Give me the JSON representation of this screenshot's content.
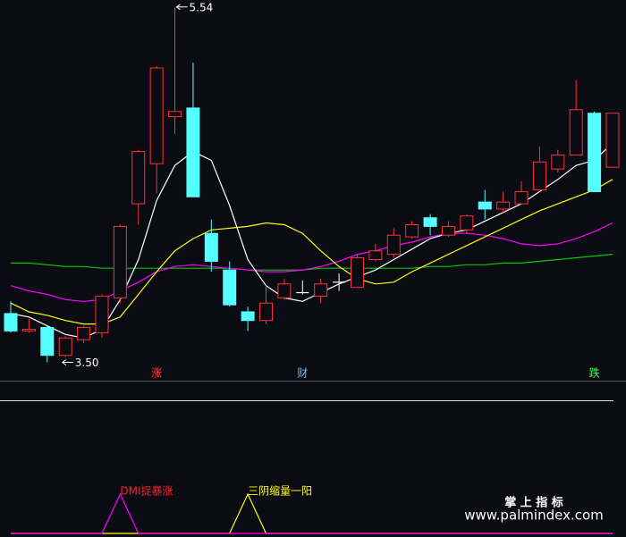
{
  "chart_data": {
    "type": "candlestick",
    "ylim": [
      3.4,
      5.58
    ],
    "up_color": "#ff3232",
    "down_color": "#54ffff",
    "doji_color": "#ffffff",
    "candles": {
      "open": [
        3.78,
        3.68,
        3.7,
        3.54,
        3.63,
        3.67,
        3.87,
        4.41,
        4.64,
        4.91,
        4.96,
        4.24,
        4.03,
        3.79,
        3.74,
        3.87,
        3.9,
        3.88,
        3.96,
        3.93,
        4.09,
        4.12,
        4.22,
        4.33,
        4.23,
        4.26,
        4.42,
        4.38,
        4.41,
        4.49,
        4.61,
        4.69,
        4.93,
        4.62
      ],
      "high": [
        3.85,
        3.75,
        3.71,
        3.65,
        3.71,
        3.89,
        4.29,
        4.72,
        5.2,
        5.54,
        5.22,
        4.32,
        4.08,
        3.82,
        3.94,
        3.98,
        3.97,
        3.98,
        4.01,
        4.12,
        4.18,
        4.27,
        4.31,
        4.35,
        4.31,
        4.35,
        4.49,
        4.48,
        4.54,
        4.74,
        4.72,
        5.12,
        4.94,
        4.93
      ],
      "low": [
        3.67,
        3.67,
        3.5,
        3.53,
        3.61,
        3.64,
        3.84,
        4.29,
        4.47,
        4.81,
        4.45,
        4.02,
        3.82,
        3.68,
        3.72,
        3.86,
        3.89,
        3.84,
        3.91,
        3.93,
        4.08,
        4.1,
        4.21,
        4.23,
        4.22,
        4.24,
        4.32,
        4.36,
        4.41,
        4.48,
        4.59,
        4.69,
        4.48,
        4.62
      ],
      "close": [
        3.68,
        3.69,
        3.54,
        3.64,
        3.7,
        3.88,
        4.28,
        4.71,
        5.19,
        4.94,
        4.45,
        4.08,
        3.83,
        3.74,
        3.84,
        3.95,
        3.9,
        3.95,
        3.96,
        4.1,
        4.14,
        4.23,
        4.29,
        4.28,
        4.28,
        4.34,
        4.38,
        4.42,
        4.48,
        4.65,
        4.69,
        4.95,
        4.48,
        4.93
      ]
    },
    "moving_averages": [
      {
        "color": "#00c800",
        "values": [
          4.07,
          4.07,
          4.06,
          4.05,
          4.05,
          4.04,
          4.04,
          4.04,
          4.04,
          4.04,
          4.04,
          4.04,
          4.04,
          4.03,
          4.03,
          4.03,
          4.03,
          4.04,
          4.04,
          4.04,
          4.04,
          4.04,
          4.04,
          4.05,
          4.05,
          4.06,
          4.06,
          4.07,
          4.07,
          4.08,
          4.09,
          4.1,
          4.11,
          4.12
        ]
      },
      {
        "color": "#ff00ff",
        "values": [
          3.94,
          3.91,
          3.89,
          3.86,
          3.85,
          3.86,
          3.91,
          3.96,
          4.02,
          4.05,
          4.06,
          4.05,
          4.04,
          4.03,
          4.02,
          4.02,
          4.03,
          4.05,
          4.08,
          4.12,
          4.14,
          4.17,
          4.19,
          4.22,
          4.24,
          4.24,
          4.23,
          4.21,
          4.18,
          4.17,
          4.18,
          4.21,
          4.25,
          4.3
        ]
      },
      {
        "color": "#ffff00",
        "values": [
          3.84,
          3.79,
          3.77,
          3.74,
          3.72,
          3.72,
          3.76,
          3.89,
          4.02,
          4.14,
          4.21,
          4.26,
          4.27,
          4.28,
          4.3,
          4.29,
          4.24,
          4.14,
          4.05,
          3.98,
          3.95,
          3.96,
          4.02,
          4.07,
          4.12,
          4.17,
          4.22,
          4.27,
          4.32,
          4.37,
          4.41,
          4.45,
          4.49,
          4.55
        ]
      },
      {
        "color": "#ffffff",
        "values": [
          3.78,
          3.76,
          3.71,
          3.66,
          3.64,
          3.69,
          3.86,
          4.09,
          4.43,
          4.63,
          4.71,
          4.66,
          4.4,
          4.09,
          3.94,
          3.87,
          3.85,
          3.9,
          3.95,
          3.99,
          4.03,
          4.09,
          4.15,
          4.21,
          4.24,
          4.26,
          4.31,
          4.36,
          4.41,
          4.48,
          4.55,
          4.63,
          4.66,
          4.76
        ]
      }
    ],
    "annotations": [
      {
        "text": "5.54",
        "index": 9,
        "at": "high"
      },
      {
        "text": "3.50",
        "index": 2,
        "at": "low"
      }
    ],
    "markers": [
      {
        "text": "涨",
        "index": 8,
        "color": "#ff4040"
      },
      {
        "text": "财",
        "index": 16,
        "color": "#6fb8ff"
      },
      {
        "text": "跌",
        "index": 32,
        "color": "#40ff40"
      }
    ],
    "indicator": {
      "ylim": [
        0,
        1
      ],
      "series": [
        {
          "name": "三阴缩量一阳",
          "color": "#ffff00",
          "label_color": "#ffff00",
          "values": [
            0,
            0,
            0,
            0,
            0,
            0,
            0,
            0,
            0,
            0,
            0,
            0,
            0,
            1,
            0,
            0,
            0,
            0,
            0,
            0,
            0,
            0,
            0,
            0,
            0,
            0,
            0,
            0,
            0,
            0,
            0,
            0,
            0,
            0
          ]
        },
        {
          "name": "DMI捉暴涨",
          "color": "#ff00ff",
          "label_color": "#ff2020",
          "values": [
            0,
            0,
            0,
            0,
            0,
            0,
            1,
            0,
            0,
            0,
            0,
            0,
            0,
            0,
            0,
            0,
            0,
            0,
            0,
            0,
            0,
            0,
            0,
            0,
            0,
            0,
            0,
            0,
            0,
            0,
            0,
            0,
            0,
            0
          ]
        }
      ]
    }
  },
  "watermark": {
    "title": "掌 上 指 标",
    "url": "www.palmindex.com"
  }
}
